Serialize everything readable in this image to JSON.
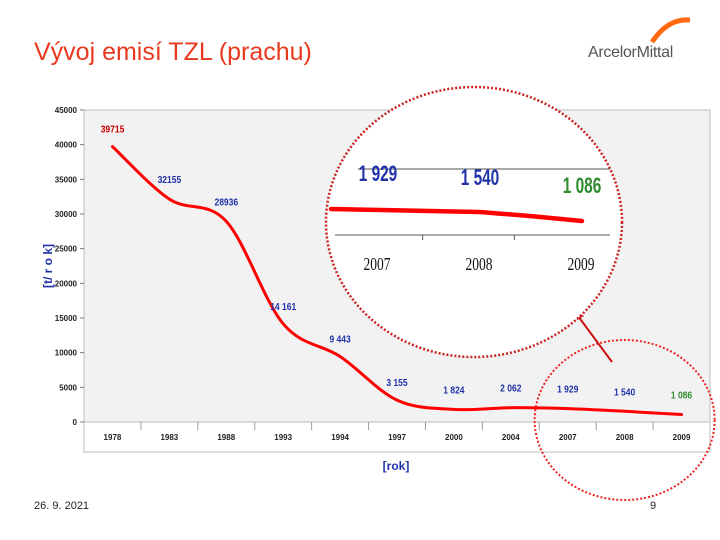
{
  "slide": {
    "title": "Vývoj emisí TZL (prachu)",
    "date": "26. 9. 2021",
    "page_number": "9",
    "logo_text": "ArcelorMittal",
    "accent_color": "#e8391f"
  },
  "chart_data": [
    {
      "type": "line",
      "categories": [
        "1978",
        "1983",
        "1988",
        "1993",
        "1994",
        "1997",
        "2000",
        "2004",
        "2007",
        "2008",
        "2009"
      ],
      "series": [
        {
          "values": [
            39715,
            32155,
            28936,
            14161,
            9443,
            3155,
            1824,
            2062,
            1929,
            1540,
            1086
          ],
          "data_labels": [
            "39715",
            "32155",
            "28936",
            "14 161",
            "9 443",
            "3 155",
            "1 824",
            "2 062",
            "1 929",
            "1 540",
            "1 086"
          ],
          "color": "#ff0000"
        }
      ],
      "ylabel": "[t/ r o k]",
      "xlabel": "[rok]",
      "ylim": [
        0,
        45000
      ],
      "yticks": [
        "0",
        "5000",
        "10000",
        "15000",
        "20000",
        "25000",
        "30000",
        "35000",
        "40000",
        "45000"
      ],
      "grid": false,
      "label_colors": {
        "first": "#cc0000",
        "last": "#2e8b2e",
        "default": "#2233aa"
      }
    },
    {
      "type": "line",
      "categories": [
        "2007",
        "2008",
        "2009"
      ],
      "series": [
        {
          "values": [
            1929,
            1540,
            1086
          ],
          "data_labels": [
            "1 929",
            "1 540",
            "1 086"
          ],
          "color": "#ff0000"
        }
      ],
      "label_colors": [
        "#2233aa",
        "#2233aa",
        "#2e8b2e"
      ]
    }
  ]
}
